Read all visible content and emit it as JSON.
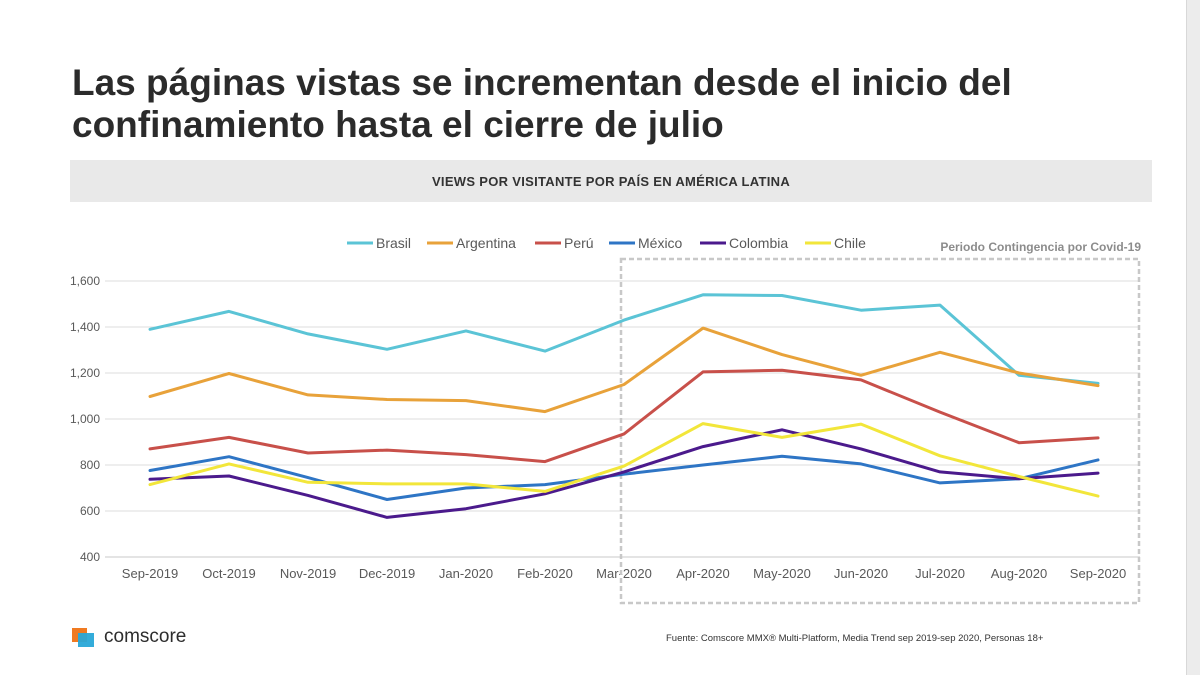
{
  "title": "Las páginas vistas se incrementan desde el inicio del confinamiento hasta el cierre de julio",
  "banner": "VIEWS POR VISITANTE POR PAÍS EN AMÉRICA LATINA",
  "logo_text": "comscore",
  "source": "Fuente: Comscore MMX® Multi-Platform, Media Trend sep 2019-sep 2020, Personas 18+",
  "chart_data": {
    "type": "line",
    "title": "VIEWS POR VISITANTE POR PAÍS EN AMÉRICA LATINA",
    "categories": [
      "Sep-2019",
      "Oct-2019",
      "Nov-2019",
      "Dec-2019",
      "Jan-2020",
      "Feb-2020",
      "Mar-2020",
      "Apr-2020",
      "May-2020",
      "Jun-2020",
      "Jul-2020",
      "Aug-2020",
      "Sep-2020"
    ],
    "yticks": [
      "400",
      "600",
      "800",
      "1,000",
      "1,200",
      "1,400",
      "1,600"
    ],
    "ylim": [
      400,
      1600
    ],
    "legend_position": "top",
    "annotation": "Periodo Contingencia por Covid-19",
    "highlight_range": [
      "Mar-2020",
      "Sep-2020"
    ],
    "series": [
      {
        "name": "Brasil",
        "color": "#5bc4d6",
        "values": [
          1390,
          1468,
          1370,
          1303,
          1383,
          1295,
          1430,
          1540,
          1537,
          1473,
          1495,
          1190,
          1155
        ]
      },
      {
        "name": "Argentina",
        "color": "#e8a23a",
        "values": [
          1098,
          1198,
          1105,
          1085,
          1080,
          1032,
          1150,
          1395,
          1280,
          1190,
          1290,
          1200,
          1145
        ]
      },
      {
        "name": "Perú",
        "color": "#c8504a",
        "values": [
          870,
          920,
          852,
          865,
          845,
          815,
          935,
          1205,
          1212,
          1170,
          1030,
          897,
          918
        ]
      },
      {
        "name": "México",
        "color": "#2e75c5",
        "values": [
          776,
          836,
          745,
          650,
          700,
          715,
          760,
          800,
          838,
          805,
          722,
          740,
          822
        ]
      },
      {
        "name": "Colombia",
        "color": "#4b1a8c",
        "values": [
          738,
          752,
          668,
          572,
          610,
          675,
          770,
          880,
          953,
          870,
          770,
          740,
          765
        ]
      },
      {
        "name": "Chile",
        "color": "#f2e63a",
        "values": [
          715,
          805,
          725,
          718,
          718,
          685,
          795,
          980,
          920,
          978,
          840,
          750,
          665
        ]
      }
    ]
  }
}
